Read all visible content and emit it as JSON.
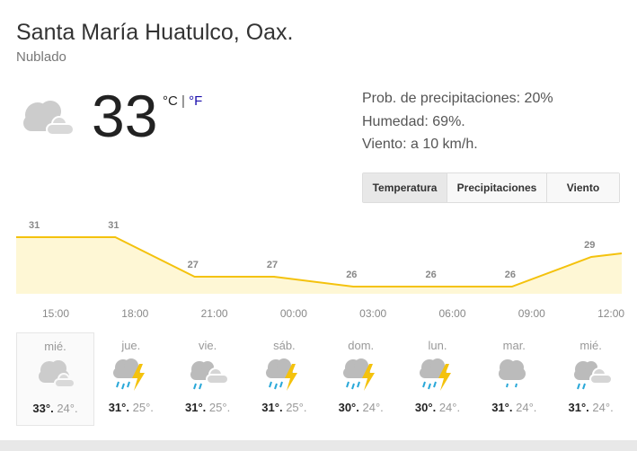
{
  "location": "Santa María Huatulco, Oax.",
  "condition": "Nublado",
  "current": {
    "temp": "33",
    "unit_c": "°C",
    "sep": " | ",
    "unit_f": "°F",
    "icon": "cloudy-icon"
  },
  "details": [
    "Prob. de precipitaciones: 20%",
    "Humedad: 69%.",
    "Viento: a 10 km/h."
  ],
  "tabs": [
    "Temperatura",
    "Precipitaciones",
    "Viento"
  ],
  "active_tab": "Temperatura",
  "colors": {
    "line": "#f4c20d",
    "fill": "#fef7d5"
  },
  "chart_data": {
    "type": "area",
    "categories": [
      "15:00",
      "18:00",
      "21:00",
      "00:00",
      "03:00",
      "06:00",
      "09:00",
      "12:00"
    ],
    "values": [
      31,
      31,
      27,
      27,
      26,
      26,
      26,
      29
    ],
    "labels": [
      "31",
      "31",
      "27",
      "27",
      "26",
      "26",
      "26",
      "29"
    ]
  },
  "forecast": [
    {
      "day": "mié.",
      "icon": "cloudy-icon",
      "hi": "33°.",
      "lo": "24°."
    },
    {
      "day": "jue.",
      "icon": "thunderstorm-icon",
      "hi": "31°.",
      "lo": "25°."
    },
    {
      "day": "vie.",
      "icon": "rain-cloudy-icon",
      "hi": "31°.",
      "lo": "25°."
    },
    {
      "day": "sáb.",
      "icon": "thunderstorm-icon",
      "hi": "31°.",
      "lo": "25°."
    },
    {
      "day": "dom.",
      "icon": "thunderstorm-icon",
      "hi": "30°.",
      "lo": "24°."
    },
    {
      "day": "lun.",
      "icon": "thunderstorm-icon",
      "hi": "30°.",
      "lo": "24°."
    },
    {
      "day": "mar.",
      "icon": "rain-icon",
      "hi": "31°.",
      "lo": "24°."
    },
    {
      "day": "mié.",
      "icon": "rain-cloudy-icon",
      "hi": "31°.",
      "lo": "24°."
    }
  ]
}
